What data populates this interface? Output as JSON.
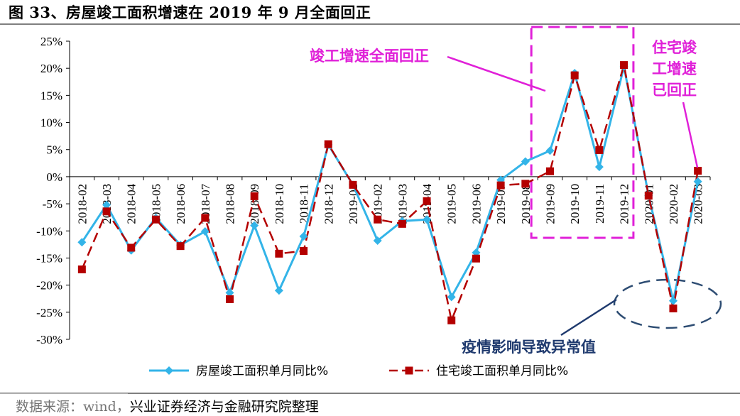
{
  "title": "图 33、房屋竣工面积增速在 2019 年 9 月全面回正",
  "source": "数据来源：wind，兴业证券经济与金融研究院整理",
  "colors": {
    "series1": "#33b4e8",
    "series2": "#b40000",
    "highlight": "#e020d8",
    "ellipse": "#2e4d73",
    "anno_blue": "#1f3a6e"
  },
  "annotations": {
    "recovery": "竣工增速全面回正",
    "residential": [
      "住宅竣",
      "工增速",
      "已回正"
    ],
    "epidemic": "疫情影响导致异常值"
  },
  "chart_data": {
    "type": "line",
    "categories": [
      "2018-02",
      "2018-03",
      "2018-04",
      "2018-05",
      "2018-06",
      "2018-07",
      "2018-08",
      "2018-09",
      "2018-10",
      "2018-11",
      "2018-12",
      "2019-01",
      "2019-02",
      "2019-03",
      "2019-04",
      "2019-05",
      "2019-06",
      "2019-07",
      "2019-08",
      "2019-09",
      "2019-10",
      "2019-11",
      "2019-12",
      "2020-01",
      "2020-02",
      "2020-03"
    ],
    "ylim": [
      -30,
      25
    ],
    "yticks": [
      "25%",
      "20%",
      "15%",
      "10%",
      "5%",
      "0%",
      "-5%",
      "-10%",
      "-15%",
      "-20%",
      "-25%",
      "-30%"
    ],
    "legend_position": "bottom",
    "series": [
      {
        "name": "房屋竣工面积单月同比%",
        "style": "solid-diamond",
        "values": [
          -12.1,
          -5.2,
          -13.6,
          -7.6,
          -12.6,
          -10.1,
          -21.4,
          -9.0,
          -21.0,
          -11.0,
          5.9,
          -1.5,
          -11.8,
          -8.2,
          -7.9,
          -22.2,
          -14.0,
          -0.6,
          2.8,
          4.8,
          19.1,
          1.8,
          20.3,
          -3.5,
          -22.9,
          -0.9
        ]
      },
      {
        "name": "住宅竣工面积单月同比%",
        "style": "dashed-square",
        "values": [
          -17.1,
          -6.4,
          -13.1,
          -7.9,
          -12.8,
          -7.6,
          -22.6,
          -3.6,
          -14.2,
          -13.7,
          6.0,
          -1.5,
          -7.9,
          -8.7,
          -4.5,
          -26.5,
          -15.1,
          -1.6,
          -1.3,
          1.0,
          18.7,
          4.9,
          20.6,
          -3.5,
          -24.3,
          1.1
        ]
      }
    ]
  }
}
